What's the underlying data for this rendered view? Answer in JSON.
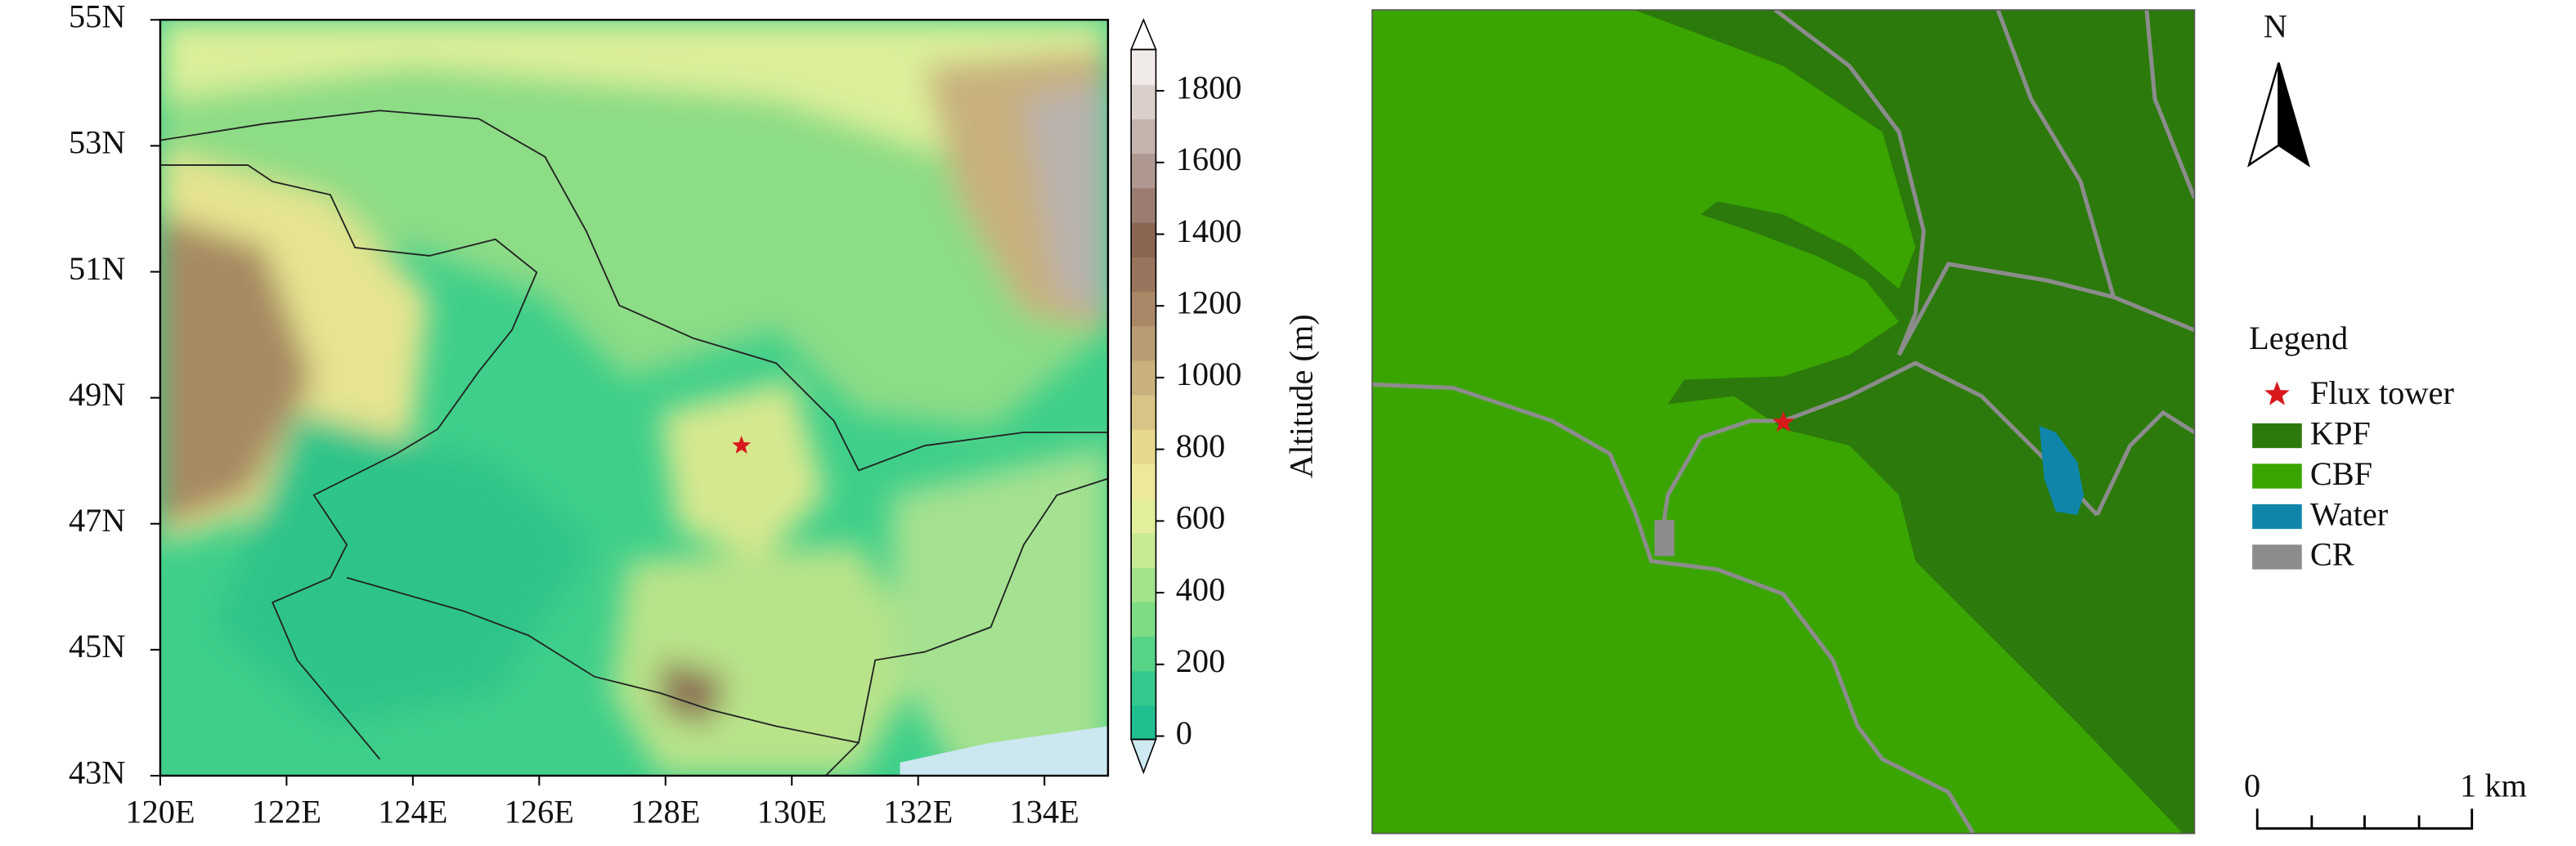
{
  "elevation_map": {
    "x_ticks": [
      "120E",
      "122E",
      "124E",
      "126E",
      "128E",
      "130E",
      "132E",
      "134E"
    ],
    "y_ticks": [
      "43N",
      "45N",
      "47N",
      "49N",
      "51N",
      "53N",
      "55N"
    ],
    "colorbar": {
      "label": "Altitude (m)",
      "ticks": [
        0,
        200,
        400,
        600,
        800,
        1000,
        1200,
        1400,
        1600,
        1800
      ]
    }
  },
  "landcover_map": {
    "north": "N",
    "legend": {
      "title": "Legend",
      "items": [
        {
          "label": "Flux tower",
          "color": "#d7191c"
        },
        {
          "label": "KPF",
          "color": "#2b7a0b"
        },
        {
          "label": "CBF",
          "color": "#3aa500"
        },
        {
          "label": "Water",
          "color": "#0f86a9"
        },
        {
          "label": "CR",
          "color": "#8c8c8c"
        }
      ]
    },
    "scale_bar": {
      "start": "0",
      "end": "1 km"
    }
  }
}
